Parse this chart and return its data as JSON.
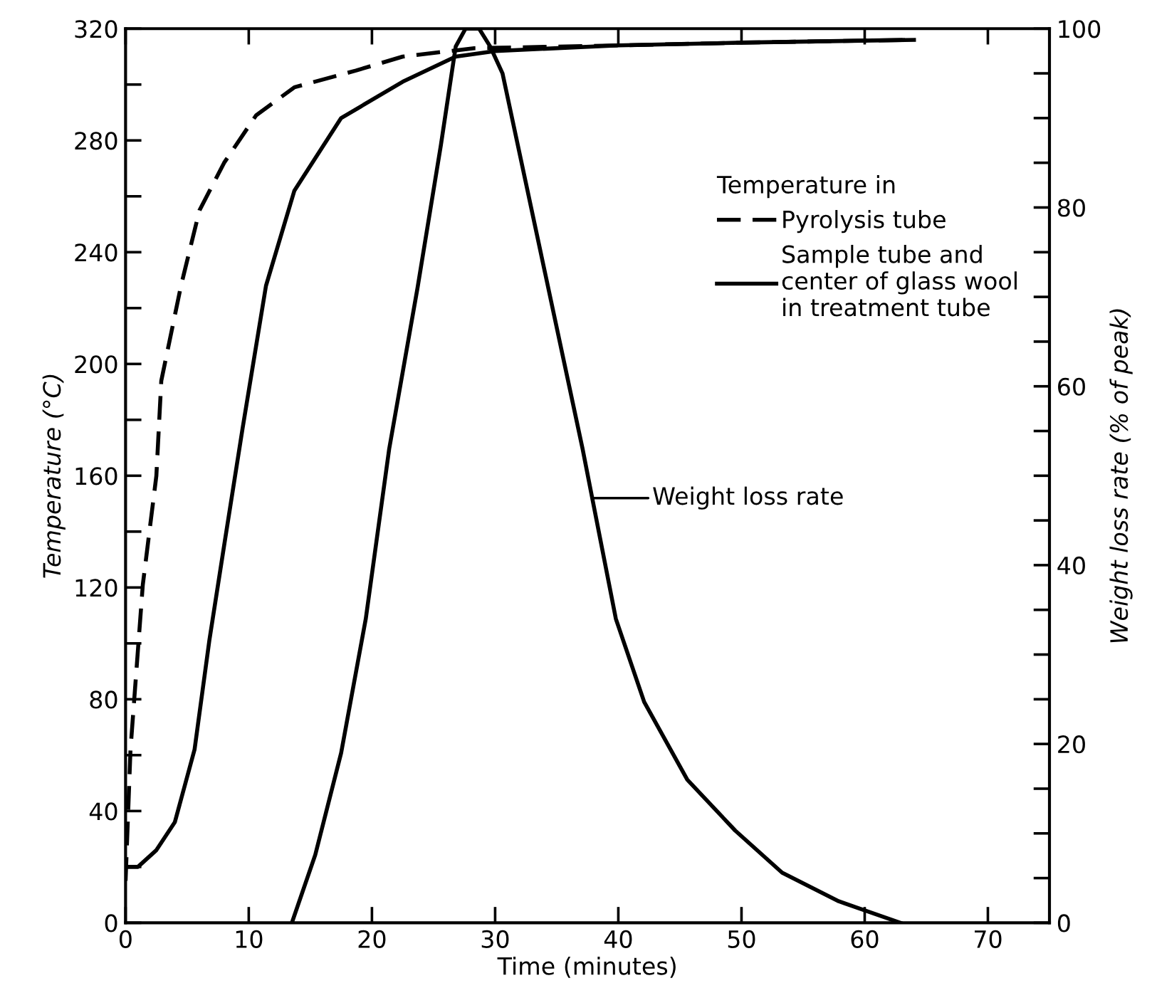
{
  "chart_data": {
    "type": "line",
    "xlabel": "Time (minutes)",
    "ylabel": "Temperature (°C)",
    "y2label": "Weight loss rate (% of peak)",
    "legend_title": "Temperature in",
    "legend": "top right",
    "grid": false,
    "marker": "none",
    "xlim": [
      0,
      75
    ],
    "xticks": [
      0,
      10,
      20,
      30,
      40,
      50,
      60,
      70
    ],
    "ylim": [
      0,
      320
    ],
    "yticks": [
      0,
      {
        "value": 20,
        "label": null
      },
      40,
      {
        "value": 60,
        "label": null
      },
      80,
      {
        "value": 100,
        "label": null
      },
      120,
      {
        "value": 140,
        "label": null
      },
      160,
      {
        "value": 180,
        "label": null
      },
      200,
      {
        "value": 220,
        "label": null
      },
      240,
      {
        "value": 260,
        "label": null
      },
      280,
      {
        "value": 300,
        "label": null
      },
      320
    ],
    "y2lim": [
      0,
      100
    ],
    "y2ticks": [
      0,
      {
        "value": 5,
        "label": null
      },
      {
        "value": 10,
        "label": null
      },
      {
        "value": 15,
        "label": null
      },
      20,
      {
        "value": 25,
        "label": null
      },
      {
        "value": 30,
        "label": null
      },
      {
        "value": 35,
        "label": null
      },
      40,
      {
        "value": 45,
        "label": null
      },
      {
        "value": 50,
        "label": null
      },
      {
        "value": 55,
        "label": null
      },
      60,
      {
        "value": 65,
        "label": null
      },
      {
        "value": 70,
        "label": null
      },
      {
        "value": 75,
        "label": null
      },
      80,
      {
        "value": 85,
        "label": null
      },
      {
        "value": 90,
        "label": null
      },
      {
        "value": 95,
        "label": null
      },
      100
    ],
    "series": [
      {
        "name": "Pyrolysis tube",
        "color": "#000000",
        "line_style": "dashed",
        "x": [
          0,
          0.4,
          1.4,
          2.5,
          2.9,
          4.5,
          6,
          8,
          10.6,
          13.7,
          18.7,
          22.5,
          28.3,
          40,
          50,
          64
        ],
        "values": [
          15,
          62,
          121,
          160,
          194,
          228,
          255,
          272,
          289,
          299,
          305,
          310,
          313,
          314,
          315,
          316
        ]
      },
      {
        "name": "Sample tube and\ncenter of glass wool\nin treatment tube",
        "color": "#000000",
        "line_style": "solid",
        "x": [
          0,
          1,
          2.5,
          4,
          5.6,
          6.8,
          8,
          9.5,
          11.4,
          13.7,
          17.5,
          22.5,
          26.8,
          30,
          40,
          50,
          64
        ],
        "values": [
          20,
          20,
          26,
          36,
          62,
          101,
          135,
          177,
          228,
          262,
          288,
          301,
          310,
          312,
          314,
          315,
          316
        ]
      },
      {
        "color": "#000000",
        "line_style": "solid",
        "axis": "y2",
        "x": [
          13.5,
          15.4,
          17.5,
          19.5,
          21.4,
          23.7,
          25.6,
          26.8,
          27.6,
          28.7,
          29.6,
          30.6,
          37.1,
          39.8,
          42.1,
          45.6,
          49.5,
          53.3,
          57.9,
          62.9
        ],
        "values": [
          0,
          7.6,
          19,
          34,
          53,
          71,
          87,
          98,
          100,
          100,
          98,
          95,
          53,
          34,
          24.7,
          16,
          10.3,
          5.6,
          2.4,
          0
        ]
      }
    ],
    "annotations": [
      "Weight loss rate"
    ]
  }
}
